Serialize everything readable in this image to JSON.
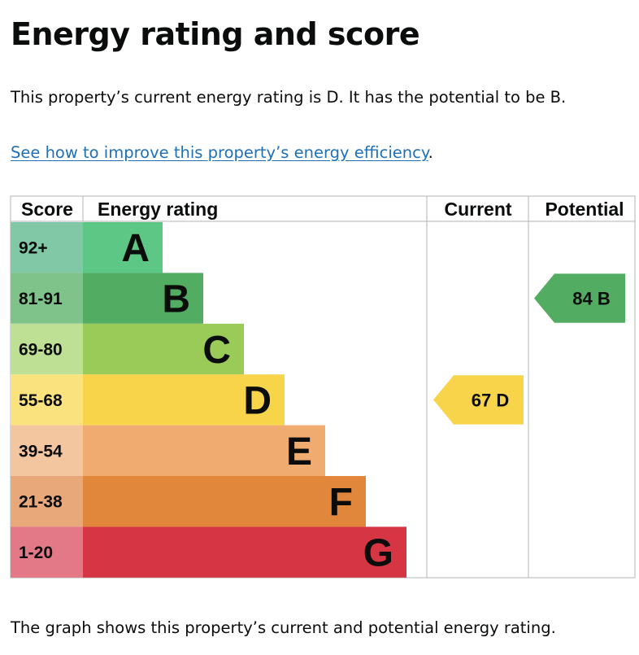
{
  "page": {
    "title": "Energy rating and score",
    "intro": "This property’s current energy rating is D. It has the potential to be B.",
    "link_text": "See how to improve this property’s energy efficiency",
    "link_suffix": ".",
    "footer": "The graph shows this property’s current and potential energy rating."
  },
  "chart_data": {
    "type": "bar",
    "columns": {
      "score": "Score",
      "rating": "Energy rating",
      "current": "Current",
      "potential": "Potential"
    },
    "bands": [
      {
        "letter": "A",
        "range": "92+",
        "color": "#5dc786",
        "score_color": "#80c8a6"
      },
      {
        "letter": "B",
        "range": "81-91",
        "color": "#52ad62",
        "score_color": "#7fc38a"
      },
      {
        "letter": "C",
        "range": "69-80",
        "color": "#9acb58",
        "score_color": "#bde094"
      },
      {
        "letter": "D",
        "range": "55-68",
        "color": "#f7d44a",
        "score_color": "#fae37e"
      },
      {
        "letter": "E",
        "range": "39-54",
        "color": "#f0ac70",
        "score_color": "#f4c6a0"
      },
      {
        "letter": "F",
        "range": "21-38",
        "color": "#e0873c",
        "score_color": "#e9a87a"
      },
      {
        "letter": "G",
        "range": "1-20",
        "color": "#d63543",
        "score_color": "#e37887"
      }
    ],
    "current": {
      "score": 67,
      "letter": "D",
      "label": "67 D",
      "color": "#f7d44a"
    },
    "potential": {
      "score": 84,
      "letter": "B",
      "label": "84 B",
      "color": "#52ad62"
    }
  }
}
